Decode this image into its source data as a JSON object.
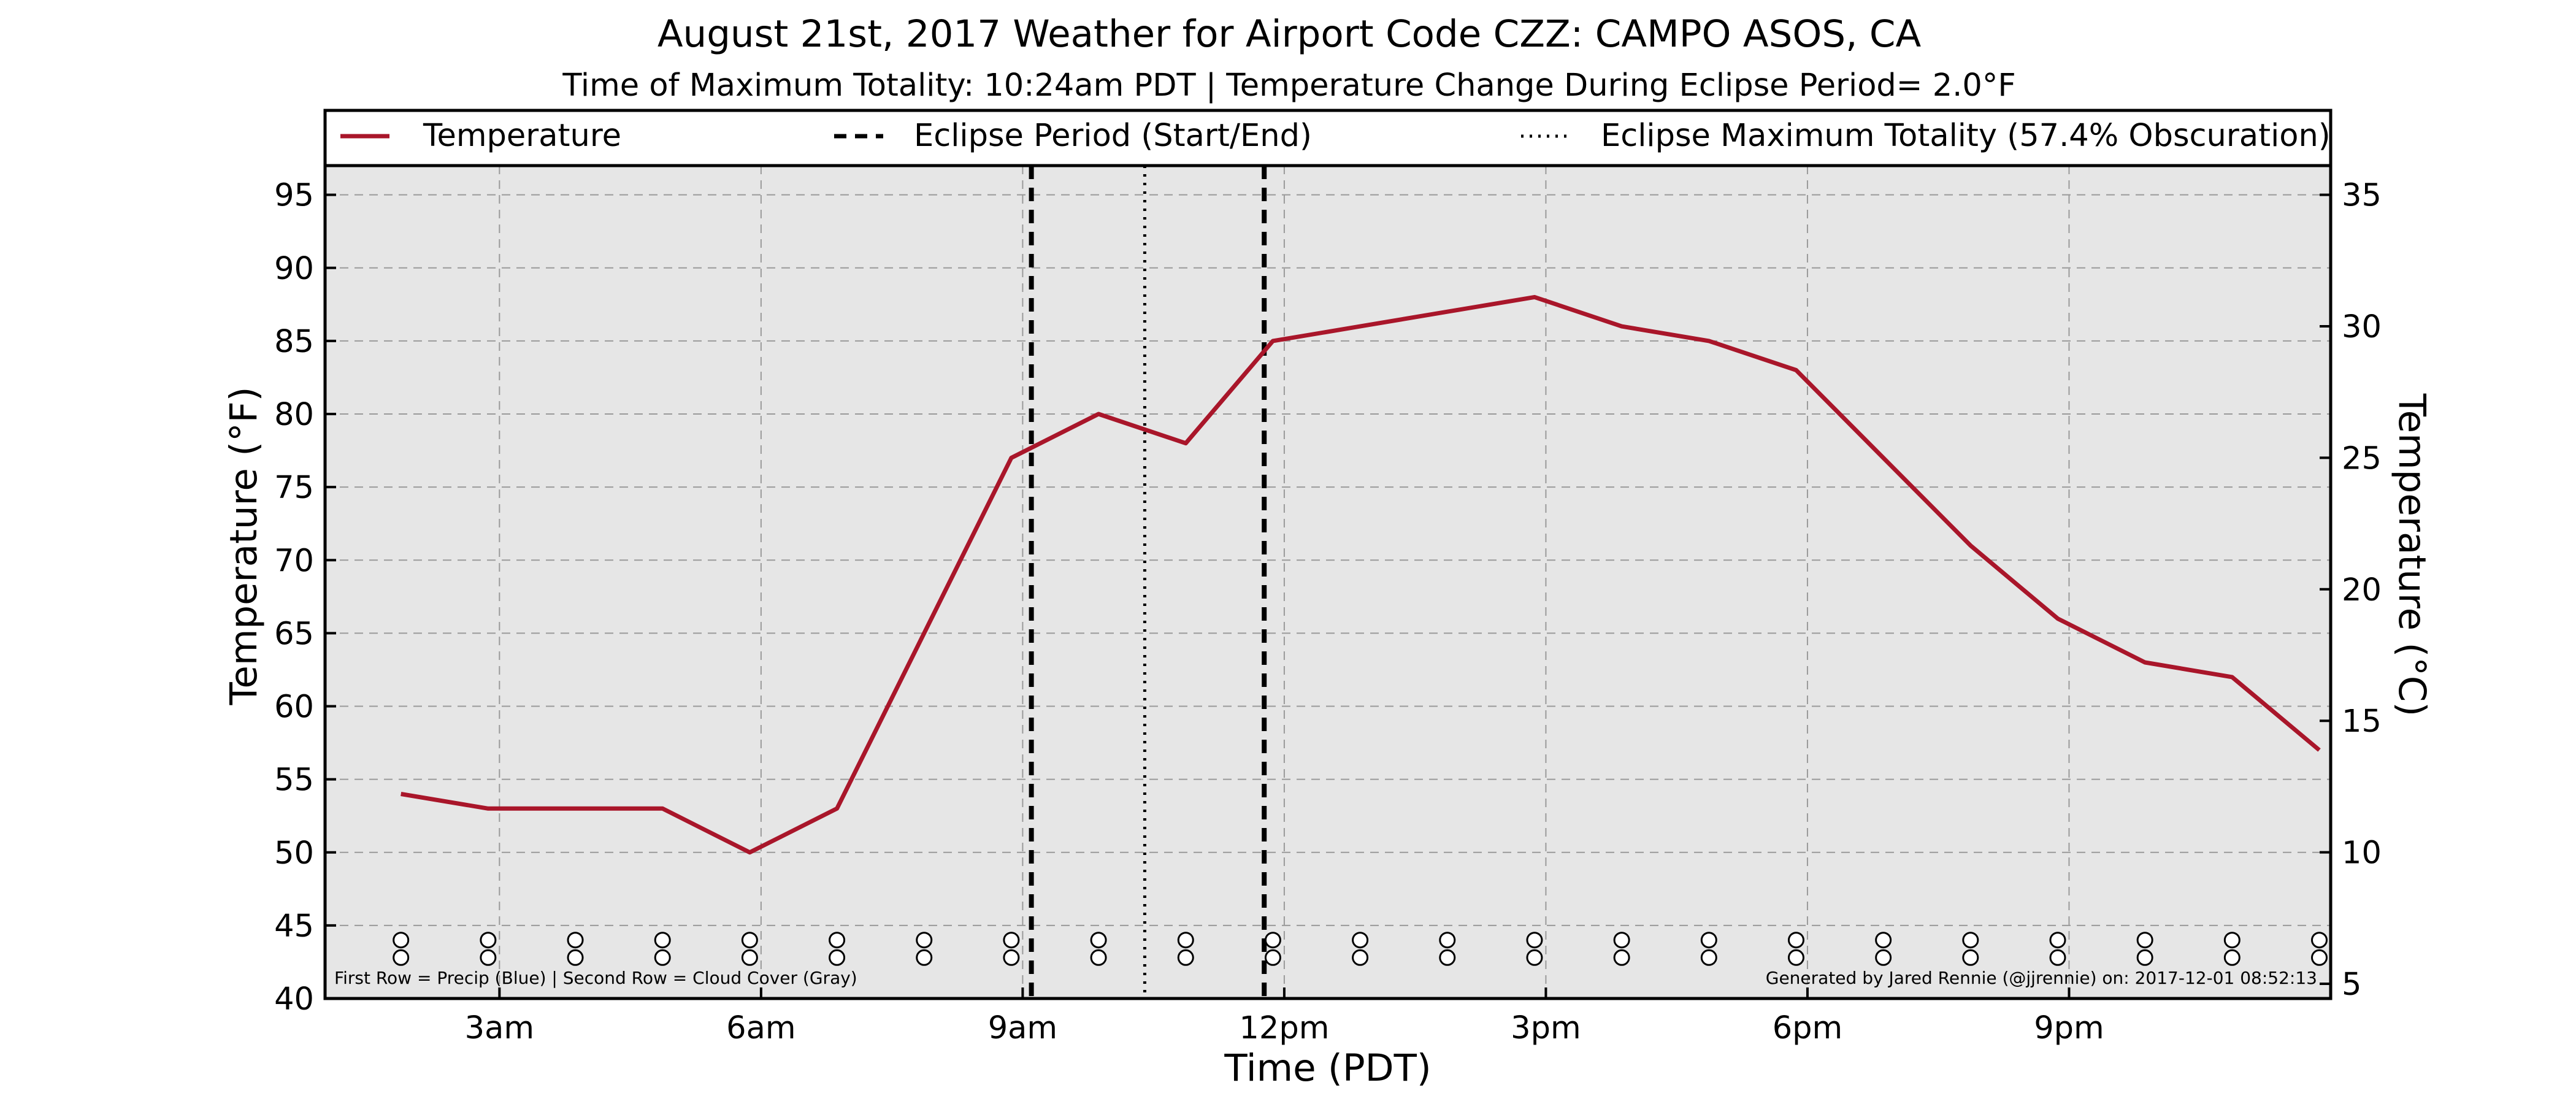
{
  "colors": {
    "line": "#a9162a",
    "plot_background": "#e6e6e6",
    "grid": "#9a9a9a",
    "page_background": "#ffffff"
  },
  "footnotes": {
    "left": "First Row = Precip (Blue) | Second Row = Cloud Cover (Gray)",
    "right": "Generated by Jared Rennie (@jjrennie) on: 2017-12-01 08:52:13"
  },
  "chart_data": {
    "type": "line",
    "title": "August 21st, 2017 Weather for Airport Code CZZ: CAMPO ASOS, CA",
    "subtitle": "Time of Maximum Totality: 10:24am PDT | Temperature Change During Eclipse Period= 2.0°F",
    "xlabel": "Time (PDT)",
    "ylabel": "Temperature (°F)",
    "ylabel_right": "Temperature (°C)",
    "xlim": [
      1.0,
      24.0
    ],
    "ylim": [
      40,
      97
    ],
    "ylim_right_celsius": [
      4.44,
      36.11
    ],
    "x_ticks": [
      {
        "x": 3,
        "label": "3am"
      },
      {
        "x": 6,
        "label": "6am"
      },
      {
        "x": 9,
        "label": "9am"
      },
      {
        "x": 12,
        "label": "12pm"
      },
      {
        "x": 15,
        "label": "3pm"
      },
      {
        "x": 18,
        "label": "6pm"
      },
      {
        "x": 21,
        "label": "9pm"
      }
    ],
    "y_ticks": [
      40,
      45,
      50,
      55,
      60,
      65,
      70,
      75,
      80,
      85,
      90,
      95
    ],
    "y_ticks_right": [
      5,
      10,
      15,
      20,
      25,
      30,
      35
    ],
    "grid": true,
    "legend_position": "top",
    "legend": [
      {
        "label": "Temperature",
        "style": "solid"
      },
      {
        "label": "Eclipse Period (Start/End)",
        "style": "dashed"
      },
      {
        "label": "Eclipse Maximum Totality (57.4% Obscuration)",
        "style": "dotted"
      }
    ],
    "series": [
      {
        "name": "Temperature",
        "x": [
          1.87,
          2.87,
          3.87,
          4.87,
          5.87,
          6.87,
          7.87,
          8.87,
          9.87,
          10.87,
          11.87,
          12.87,
          13.87,
          14.87,
          15.87,
          16.87,
          17.87,
          18.87,
          19.87,
          20.87,
          21.87,
          22.87,
          23.87
        ],
        "y": [
          54,
          53,
          53,
          53,
          50,
          53,
          65,
          77,
          80,
          78,
          85,
          86,
          87,
          88,
          86,
          85,
          83,
          77,
          71,
          66,
          63,
          62,
          57
        ]
      }
    ],
    "eclipse_start": 9.1,
    "eclipse_end": 11.77,
    "eclipse_max": 10.4,
    "marker_rows": {
      "x": [
        1.87,
        2.87,
        3.87,
        4.87,
        5.87,
        6.87,
        7.87,
        8.87,
        9.87,
        10.87,
        11.87,
        12.87,
        13.87,
        14.87,
        15.87,
        16.87,
        17.87,
        18.87,
        19.87,
        20.87,
        21.87,
        22.87,
        23.87
      ],
      "row1_y": 44,
      "row2_y": 42.8
    }
  }
}
